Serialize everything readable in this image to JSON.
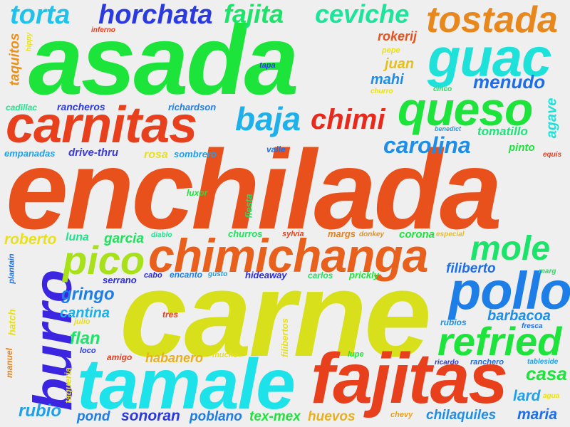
{
  "words": [
    {
      "text": "enchilada",
      "color": "#e8501c"
    },
    {
      "text": "carne",
      "color": "#d7e01a"
    },
    {
      "text": "asada",
      "color": "#1ce43a"
    },
    {
      "text": "tamale",
      "color": "#1ee2ea"
    },
    {
      "text": "fajitas",
      "color": "#e8401c"
    },
    {
      "text": "carnitas",
      "color": "#e8401c"
    },
    {
      "text": "chimichanga",
      "color": "#e8601c"
    },
    {
      "text": "burro",
      "color": "#3b25e0"
    },
    {
      "text": "pollo",
      "color": "#1e7ee8"
    },
    {
      "text": "guac",
      "color": "#1ee2da"
    },
    {
      "text": "queso",
      "color": "#1ce43a"
    },
    {
      "text": "tostada",
      "color": "#e8881c"
    },
    {
      "text": "refried",
      "color": "#1ce43a"
    },
    {
      "text": "pico",
      "color": "#a8e01a"
    },
    {
      "text": "mole",
      "color": "#1ce46a"
    },
    {
      "text": "horchata",
      "color": "#2a3ae0"
    },
    {
      "text": "torta",
      "color": "#1ec2ea"
    },
    {
      "text": "fajita",
      "color": "#1ce46a"
    },
    {
      "text": "ceviche",
      "color": "#1ce49a"
    },
    {
      "text": "baja",
      "color": "#1eb0ea"
    },
    {
      "text": "chimi",
      "color": "#e82a1c"
    },
    {
      "text": "carolina",
      "color": "#1e8ee8"
    },
    {
      "text": "menudo",
      "color": "#1e6ee8"
    },
    {
      "text": "tomatillo",
      "color": "#1ce47a"
    },
    {
      "text": "agave",
      "color": "#1ee2da"
    },
    {
      "text": "casa",
      "color": "#1ce43a"
    },
    {
      "text": "barbacoa",
      "color": "#1e8ee8"
    },
    {
      "text": "filiberto",
      "color": "#1e6ee8"
    },
    {
      "text": "gringo",
      "color": "#1e7ee8"
    },
    {
      "text": "cantina",
      "color": "#1eb0ea"
    },
    {
      "text": "flan",
      "color": "#1ce46a"
    },
    {
      "text": "rubio",
      "color": "#1ea0ea"
    },
    {
      "text": "sonoran",
      "color": "#2a3ae0"
    },
    {
      "text": "poblano",
      "color": "#1e7ee8"
    },
    {
      "text": "tex-mex",
      "color": "#1ce43a"
    },
    {
      "text": "huevos",
      "color": "#e8b01c"
    },
    {
      "text": "chilaquiles",
      "color": "#1e8ee8"
    },
    {
      "text": "maria",
      "color": "#1e6ee8"
    },
    {
      "text": "lard",
      "color": "#1ea0ea"
    },
    {
      "text": "pond",
      "color": "#1e7ee8"
    },
    {
      "text": "roberto",
      "color": "#e8e01c"
    },
    {
      "text": "taquitos",
      "color": "#e8901c"
    },
    {
      "text": "rokerij",
      "color": "#e8501c"
    },
    {
      "text": "juan",
      "color": "#e8c01c"
    },
    {
      "text": "mahi",
      "color": "#1e8ee8"
    },
    {
      "text": "pinto",
      "color": "#1ce43a"
    },
    {
      "text": "habanero",
      "color": "#e8b01c"
    },
    {
      "text": "garcia",
      "color": "#1ce45a"
    },
    {
      "text": "luna",
      "color": "#1ce48a"
    },
    {
      "text": "corona",
      "color": "#1ce43a"
    },
    {
      "text": "margs",
      "color": "#e8801c"
    },
    {
      "text": "rosa",
      "color": "#e8e01c"
    },
    {
      "text": "sombrero",
      "color": "#1ea0ea"
    },
    {
      "text": "empanadas",
      "color": "#1ea0ea"
    },
    {
      "text": "drive-thru",
      "color": "#3a3ae0"
    },
    {
      "text": "cadillac",
      "color": "#1ce48a"
    },
    {
      "text": "rancheros",
      "color": "#2a3ae0"
    },
    {
      "text": "richardson",
      "color": "#1e7ee8"
    },
    {
      "text": "valle",
      "color": "#1e6ee8"
    },
    {
      "text": "luxor",
      "color": "#1ce43a"
    },
    {
      "text": "fiesta",
      "color": "#1ce46a"
    },
    {
      "text": "churros",
      "color": "#1ce45a"
    },
    {
      "text": "sylvia",
      "color": "#e8401c"
    },
    {
      "text": "donkey",
      "color": "#e8901c"
    },
    {
      "text": "especial",
      "color": "#e8c01c"
    },
    {
      "text": "diablo",
      "color": "#1ce48a"
    },
    {
      "text": "cabo",
      "color": "#2a2ae0"
    },
    {
      "text": "encanto",
      "color": "#1e7ee8"
    },
    {
      "text": "gusto",
      "color": "#1ea0ea"
    },
    {
      "text": "hideaway",
      "color": "#2a2ae0"
    },
    {
      "text": "carlos",
      "color": "#1ce45a"
    },
    {
      "text": "prickly",
      "color": "#1ce43a"
    },
    {
      "text": "serrano",
      "color": "#2a2ae0"
    },
    {
      "text": "plantain",
      "color": "#1e6ee8"
    },
    {
      "text": "hatch",
      "color": "#e8e01c"
    },
    {
      "text": "julio",
      "color": "#e8e01c"
    },
    {
      "text": "loco",
      "color": "#2a3ae0"
    },
    {
      "text": "amigo",
      "color": "#e83a1c"
    },
    {
      "text": "tres",
      "color": "#e8401c"
    },
    {
      "text": "mucho",
      "color": "#e8e01c"
    },
    {
      "text": "filibertos",
      "color": "#e8e01c"
    },
    {
      "text": "lupe",
      "color": "#1ce43a"
    },
    {
      "text": "ricardo",
      "color": "#2a3ae0"
    },
    {
      "text": "ranchero",
      "color": "#1e6ee8"
    },
    {
      "text": "tableside",
      "color": "#1ea0ea"
    },
    {
      "text": "rubios",
      "color": "#1e8ee8"
    },
    {
      "text": "fresca",
      "color": "#1e6ee8"
    },
    {
      "text": "marg",
      "color": "#1ce45a"
    },
    {
      "text": "agua",
      "color": "#e8e01c"
    },
    {
      "text": "chevy",
      "color": "#e8a01c"
    },
    {
      "text": "manuel",
      "color": "#e8801c"
    },
    {
      "text": "taqueria",
      "color": "#e8e01c"
    },
    {
      "text": "inferno",
      "color": "#e83a1c"
    },
    {
      "text": "hippy",
      "color": "#e8e01c"
    },
    {
      "text": "tapa",
      "color": "#2a3ae0"
    },
    {
      "text": "pepe",
      "color": "#e8e01c"
    },
    {
      "text": "churro",
      "color": "#e8e01c"
    },
    {
      "text": "cinco",
      "color": "#1ce45a"
    },
    {
      "text": "benedict",
      "color": "#1ea0ea"
    },
    {
      "text": "equis",
      "color": "#e83a1c"
    }
  ]
}
